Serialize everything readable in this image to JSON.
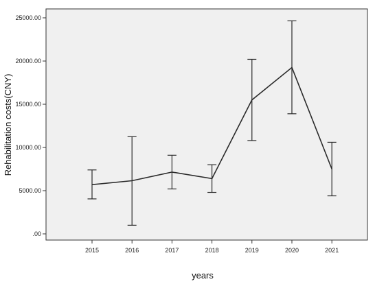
{
  "chart_data": {
    "type": "line",
    "title": "",
    "xlabel": "years",
    "ylabel": "Rehabilitation costs(CNY)",
    "ylim": [
      0,
      25000
    ],
    "y_tick_values": [
      0,
      5000,
      10000,
      15000,
      20000,
      25000
    ],
    "y_tick_labels": [
      ".00",
      "5000.00",
      "10000.00",
      "15000.00",
      "20000.00",
      "25000.00"
    ],
    "categories": [
      "2015",
      "2016",
      "2017",
      "2018",
      "2019",
      "2020",
      "2021"
    ],
    "series": [
      {
        "values": [
          5700,
          6150,
          7150,
          6400,
          15500,
          19250,
          7500
        ],
        "error_low": [
          4050,
          1000,
          5200,
          4800,
          10800,
          13900,
          4400
        ],
        "error_high": [
          7400,
          11250,
          9100,
          8000,
          20200,
          24650,
          10600
        ]
      }
    ],
    "grid": false,
    "legend": "none",
    "colors": {
      "plot_background": "#f0f0f0",
      "line": "#2a2a2a",
      "frame": "#333333"
    }
  }
}
